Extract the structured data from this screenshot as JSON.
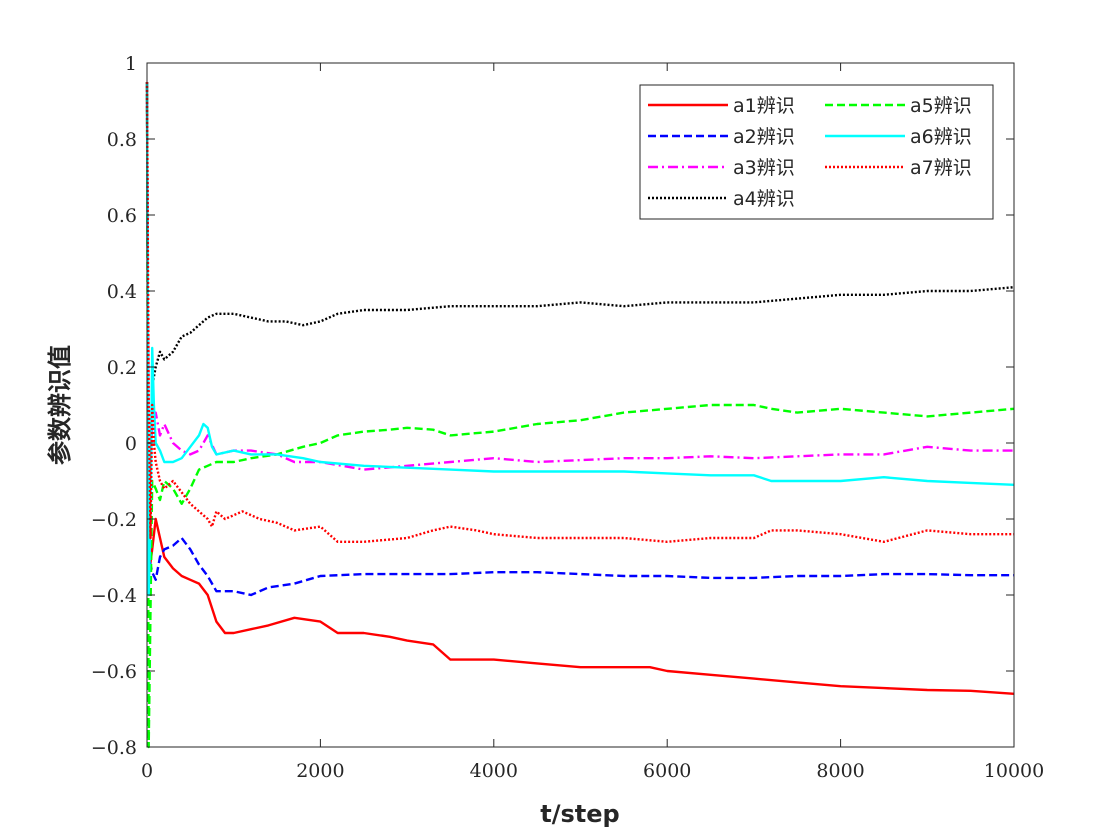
{
  "chart_data": {
    "type": "line",
    "title": "",
    "xlabel": "t/step",
    "ylabel": "参数辨识值",
    "xlim": [
      0,
      10000
    ],
    "ylim": [
      -0.8,
      1
    ],
    "xticks": [
      0,
      2000,
      4000,
      6000,
      8000,
      10000
    ],
    "yticks": [
      -0.8,
      -0.6,
      -0.4,
      -0.2,
      0,
      0.2,
      0.4,
      0.6,
      0.8,
      1
    ],
    "ytick_labels": [
      "−0.8",
      "−0.6",
      "−0.4",
      "−0.2",
      "0",
      "0.2",
      "0.4",
      "0.6",
      "0.8",
      "1"
    ],
    "xtick_labels": [
      "0",
      "2000",
      "4000",
      "6000",
      "8000",
      "10000"
    ],
    "grid": false,
    "legend_position": "top-right",
    "legend_columns": 2,
    "series": [
      {
        "name": "a1辨识",
        "color": "#ff0000",
        "style": "solid",
        "x": [
          0,
          20,
          60,
          100,
          150,
          200,
          300,
          400,
          500,
          600,
          700,
          800,
          900,
          1000,
          1200,
          1400,
          1700,
          2000,
          2200,
          2500,
          2800,
          3000,
          3300,
          3500,
          3800,
          4000,
          4500,
          5000,
          5500,
          5800,
          6000,
          6500,
          7000,
          7500,
          8000,
          8500,
          9000,
          9500,
          10000
        ],
        "y": [
          0.95,
          -0.35,
          -0.28,
          -0.2,
          -0.25,
          -0.3,
          -0.33,
          -0.35,
          -0.36,
          -0.37,
          -0.4,
          -0.47,
          -0.5,
          -0.5,
          -0.49,
          -0.48,
          -0.46,
          -0.47,
          -0.5,
          -0.5,
          -0.51,
          -0.52,
          -0.53,
          -0.57,
          -0.57,
          -0.57,
          -0.58,
          -0.59,
          -0.59,
          -0.59,
          -0.6,
          -0.61,
          -0.62,
          -0.63,
          -0.64,
          -0.645,
          -0.65,
          -0.652,
          -0.66
        ]
      },
      {
        "name": "a2辨识",
        "color": "#0000ff",
        "style": "dashed",
        "x": [
          0,
          20,
          60,
          100,
          150,
          200,
          300,
          400,
          500,
          600,
          700,
          800,
          900,
          1000,
          1200,
          1400,
          1700,
          2000,
          2500,
          3000,
          3500,
          4000,
          4500,
          5000,
          5500,
          6000,
          6500,
          7000,
          7500,
          8000,
          8500,
          9000,
          9500,
          10000
        ],
        "y": [
          0.95,
          -0.3,
          -0.34,
          -0.36,
          -0.3,
          -0.28,
          -0.27,
          -0.25,
          -0.28,
          -0.32,
          -0.35,
          -0.39,
          -0.39,
          -0.39,
          -0.4,
          -0.38,
          -0.37,
          -0.35,
          -0.345,
          -0.345,
          -0.345,
          -0.34,
          -0.34,
          -0.345,
          -0.35,
          -0.35,
          -0.355,
          -0.355,
          -0.35,
          -0.35,
          -0.345,
          -0.345,
          -0.348,
          -0.348
        ]
      },
      {
        "name": "a3辨识",
        "color": "#ff00ff",
        "style": "dashdot",
        "x": [
          0,
          20,
          60,
          100,
          150,
          200,
          300,
          400,
          500,
          600,
          700,
          800,
          1000,
          1200,
          1500,
          1700,
          2000,
          2500,
          3000,
          3500,
          4000,
          4500,
          5000,
          5500,
          6000,
          6500,
          7000,
          7500,
          8000,
          8500,
          9000,
          9500,
          10000
        ],
        "y": [
          0.95,
          -0.2,
          0.05,
          0.08,
          0.02,
          0.05,
          0.0,
          -0.02,
          -0.03,
          -0.02,
          0.02,
          -0.03,
          -0.02,
          -0.02,
          -0.03,
          -0.05,
          -0.05,
          -0.07,
          -0.06,
          -0.05,
          -0.04,
          -0.05,
          -0.045,
          -0.04,
          -0.04,
          -0.035,
          -0.04,
          -0.035,
          -0.03,
          -0.03,
          -0.01,
          -0.02,
          -0.02
        ]
      },
      {
        "name": "a4辨识",
        "color": "#000000",
        "style": "dotted",
        "x": [
          0,
          20,
          60,
          100,
          150,
          200,
          300,
          400,
          500,
          600,
          700,
          800,
          1000,
          1200,
          1400,
          1600,
          1800,
          2000,
          2200,
          2500,
          3000,
          3500,
          4000,
          4500,
          5000,
          5500,
          6000,
          6500,
          7000,
          7500,
          8000,
          8500,
          9000,
          9500,
          10000
        ],
        "y": [
          0.95,
          -0.2,
          0.15,
          0.2,
          0.24,
          0.22,
          0.24,
          0.28,
          0.29,
          0.31,
          0.33,
          0.34,
          0.34,
          0.33,
          0.32,
          0.32,
          0.31,
          0.32,
          0.34,
          0.35,
          0.35,
          0.36,
          0.36,
          0.36,
          0.37,
          0.36,
          0.37,
          0.37,
          0.37,
          0.38,
          0.39,
          0.39,
          0.4,
          0.4,
          0.41
        ]
      },
      {
        "name": "a5辨识",
        "color": "#00ff00",
        "style": "dashed",
        "x": [
          0,
          20,
          60,
          100,
          150,
          200,
          300,
          400,
          500,
          600,
          700,
          800,
          1000,
          1200,
          1500,
          1800,
          2000,
          2200,
          2500,
          2800,
          3000,
          3300,
          3500,
          4000,
          4500,
          5000,
          5500,
          6000,
          6500,
          7000,
          7200,
          7500,
          8000,
          8500,
          9000,
          9500,
          10000
        ],
        "y": [
          0.95,
          -0.8,
          -0.1,
          -0.12,
          -0.15,
          -0.1,
          -0.12,
          -0.16,
          -0.12,
          -0.07,
          -0.06,
          -0.05,
          -0.05,
          -0.04,
          -0.03,
          -0.01,
          0.0,
          0.02,
          0.03,
          0.035,
          0.04,
          0.035,
          0.02,
          0.03,
          0.05,
          0.06,
          0.08,
          0.09,
          0.1,
          0.1,
          0.09,
          0.08,
          0.09,
          0.08,
          0.07,
          0.08,
          0.09
        ]
      },
      {
        "name": "a6辨识",
        "color": "#00ffff",
        "style": "solid",
        "x": [
          0,
          20,
          40,
          60,
          80,
          100,
          150,
          200,
          300,
          400,
          500,
          600,
          650,
          700,
          750,
          800,
          1000,
          1200,
          1500,
          1800,
          2000,
          2500,
          3000,
          3500,
          4000,
          4500,
          5000,
          5500,
          6000,
          6500,
          7000,
          7200,
          7500,
          8000,
          8500,
          9000,
          9500,
          10000
        ],
        "y": [
          0.95,
          -0.4,
          -0.2,
          0.25,
          0.1,
          0.0,
          -0.02,
          -0.05,
          -0.05,
          -0.04,
          -0.01,
          0.02,
          0.05,
          0.04,
          -0.01,
          -0.03,
          -0.02,
          -0.03,
          -0.03,
          -0.04,
          -0.05,
          -0.06,
          -0.065,
          -0.07,
          -0.075,
          -0.075,
          -0.075,
          -0.075,
          -0.08,
          -0.085,
          -0.085,
          -0.1,
          -0.1,
          -0.1,
          -0.09,
          -0.1,
          -0.105,
          -0.11
        ]
      },
      {
        "name": "a7辨识",
        "color": "#ff0000",
        "style": "dotted",
        "x": [
          0,
          20,
          40,
          60,
          80,
          100,
          150,
          200,
          300,
          400,
          500,
          600,
          700,
          750,
          800,
          900,
          1000,
          1100,
          1300,
          1500,
          1700,
          2000,
          2200,
          2500,
          3000,
          3300,
          3500,
          3800,
          4000,
          4500,
          5000,
          5500,
          6000,
          6500,
          7000,
          7200,
          7500,
          8000,
          8500,
          9000,
          9500,
          10000
        ],
        "y": [
          0.95,
          0.1,
          -0.25,
          0.1,
          0.0,
          -0.05,
          -0.1,
          -0.12,
          -0.1,
          -0.13,
          -0.16,
          -0.18,
          -0.2,
          -0.22,
          -0.18,
          -0.2,
          -0.19,
          -0.18,
          -0.2,
          -0.21,
          -0.23,
          -0.22,
          -0.26,
          -0.26,
          -0.25,
          -0.23,
          -0.22,
          -0.23,
          -0.24,
          -0.25,
          -0.25,
          -0.25,
          -0.26,
          -0.25,
          -0.25,
          -0.23,
          -0.23,
          -0.24,
          -0.26,
          -0.23,
          -0.24,
          -0.24
        ]
      }
    ]
  }
}
